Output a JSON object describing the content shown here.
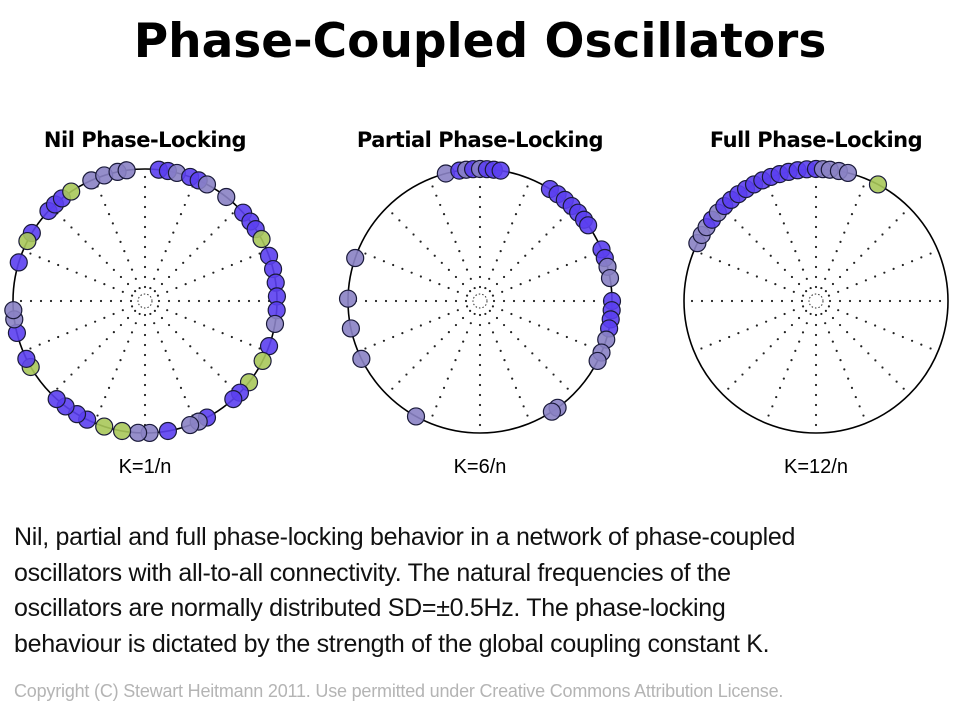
{
  "title": "Phase-Coupled Oscillators",
  "colors": {
    "blue": "#5b3ff0",
    "grey": "#8a82c4",
    "green": "#a9c85a",
    "outline": "#000000"
  },
  "panels": [
    {
      "title": "Nil Phase-Locking",
      "label": "K=1/n",
      "oscillators": [
        {
          "phase": 84,
          "c": "blue"
        },
        {
          "phase": 80,
          "c": "blue"
        },
        {
          "phase": 76,
          "c": "grey"
        },
        {
          "phase": 70,
          "c": "blue"
        },
        {
          "phase": 66,
          "c": "blue"
        },
        {
          "phase": 62,
          "c": "grey"
        },
        {
          "phase": 52,
          "c": "grey"
        },
        {
          "phase": 42,
          "c": "blue"
        },
        {
          "phase": 37,
          "c": "blue"
        },
        {
          "phase": 33,
          "c": "blue"
        },
        {
          "phase": 28,
          "c": "green"
        },
        {
          "phase": 20,
          "c": "blue"
        },
        {
          "phase": 14,
          "c": "blue"
        },
        {
          "phase": 8,
          "c": "blue"
        },
        {
          "phase": 2,
          "c": "blue"
        },
        {
          "phase": -4,
          "c": "blue"
        },
        {
          "phase": -10,
          "c": "grey"
        },
        {
          "phase": -20,
          "c": "blue"
        },
        {
          "phase": -27,
          "c": "green"
        },
        {
          "phase": -38,
          "c": "green"
        },
        {
          "phase": -44,
          "c": "blue"
        },
        {
          "phase": -48,
          "c": "blue"
        },
        {
          "phase": -62,
          "c": "blue"
        },
        {
          "phase": -66,
          "c": "grey"
        },
        {
          "phase": -70,
          "c": "grey"
        },
        {
          "phase": -80,
          "c": "blue"
        },
        {
          "phase": -88,
          "c": "grey"
        },
        {
          "phase": -93,
          "c": "grey"
        },
        {
          "phase": -100,
          "c": "green"
        },
        {
          "phase": -108,
          "c": "green"
        },
        {
          "phase": -116,
          "c": "blue"
        },
        {
          "phase": -121,
          "c": "blue"
        },
        {
          "phase": -127,
          "c": "blue"
        },
        {
          "phase": -132,
          "c": "blue"
        },
        {
          "phase": -150,
          "c": "green"
        },
        {
          "phase": -154,
          "c": "blue"
        },
        {
          "phase": -166,
          "c": "blue"
        },
        {
          "phase": -172,
          "c": "grey"
        },
        {
          "phase": -176,
          "c": "grey"
        },
        {
          "phase": 163,
          "c": "blue"
        },
        {
          "phase": 149,
          "c": "blue"
        },
        {
          "phase": 153,
          "c": "green"
        },
        {
          "phase": 137,
          "c": "blue"
        },
        {
          "phase": 133,
          "c": "blue"
        },
        {
          "phase": 129,
          "c": "blue"
        },
        {
          "phase": 124,
          "c": "green"
        },
        {
          "phase": 114,
          "c": "grey"
        },
        {
          "phase": 108,
          "c": "grey"
        },
        {
          "phase": 102,
          "c": "grey"
        },
        {
          "phase": 98,
          "c": "grey"
        }
      ]
    },
    {
      "title": "Partial Phase-Locking",
      "label": "K=6/n",
      "oscillators": [
        {
          "phase": 105,
          "c": "grey"
        },
        {
          "phase": 99,
          "c": "blue"
        },
        {
          "phase": 96,
          "c": "grey"
        },
        {
          "phase": 93,
          "c": "blue"
        },
        {
          "phase": 90,
          "c": "grey"
        },
        {
          "phase": 87,
          "c": "blue"
        },
        {
          "phase": 84,
          "c": "blue"
        },
        {
          "phase": 81,
          "c": "blue"
        },
        {
          "phase": 58,
          "c": "blue"
        },
        {
          "phase": 54,
          "c": "blue"
        },
        {
          "phase": 50,
          "c": "blue"
        },
        {
          "phase": 46,
          "c": "blue"
        },
        {
          "phase": 42,
          "c": "blue"
        },
        {
          "phase": 38,
          "c": "blue"
        },
        {
          "phase": 35,
          "c": "blue"
        },
        {
          "phase": 23,
          "c": "blue"
        },
        {
          "phase": 19,
          "c": "blue"
        },
        {
          "phase": 15,
          "c": "grey"
        },
        {
          "phase": 10,
          "c": "grey"
        },
        {
          "phase": 0,
          "c": "blue"
        },
        {
          "phase": -4,
          "c": "blue"
        },
        {
          "phase": -8,
          "c": "blue"
        },
        {
          "phase": -12,
          "c": "blue"
        },
        {
          "phase": -17,
          "c": "grey"
        },
        {
          "phase": -23,
          "c": "grey"
        },
        {
          "phase": -27,
          "c": "grey"
        },
        {
          "phase": -54,
          "c": "grey"
        },
        {
          "phase": -57,
          "c": "grey"
        },
        {
          "phase": 161,
          "c": "grey"
        },
        {
          "phase": 179,
          "c": "grey"
        },
        {
          "phase": -168,
          "c": "grey"
        },
        {
          "phase": -154,
          "c": "grey"
        },
        {
          "phase": -119,
          "c": "grey"
        }
      ]
    },
    {
      "title": "Full Phase-Locking",
      "label": "K=12/n",
      "oscillators": [
        {
          "phase": 154,
          "c": "grey"
        },
        {
          "phase": 150,
          "c": "grey"
        },
        {
          "phase": 146,
          "c": "grey"
        },
        {
          "phase": 142,
          "c": "blue"
        },
        {
          "phase": 138,
          "c": "grey"
        },
        {
          "phase": 134,
          "c": "blue"
        },
        {
          "phase": 130,
          "c": "blue"
        },
        {
          "phase": 126,
          "c": "blue"
        },
        {
          "phase": 122,
          "c": "blue"
        },
        {
          "phase": 118,
          "c": "blue"
        },
        {
          "phase": 114,
          "c": "blue"
        },
        {
          "phase": 110,
          "c": "blue"
        },
        {
          "phase": 106,
          "c": "blue"
        },
        {
          "phase": 102,
          "c": "blue"
        },
        {
          "phase": 98,
          "c": "blue"
        },
        {
          "phase": 94,
          "c": "blue"
        },
        {
          "phase": 90,
          "c": "blue"
        },
        {
          "phase": 87,
          "c": "grey"
        },
        {
          "phase": 84,
          "c": "grey"
        },
        {
          "phase": 80,
          "c": "grey"
        },
        {
          "phase": 76,
          "c": "grey"
        },
        {
          "phase": 62,
          "c": "green"
        }
      ]
    }
  ],
  "caption": [
    "Nil, partial and full phase-locking behavior in a network of phase-coupled",
    "oscillators with all-to-all connectivity. The natural frequencies of the",
    "oscillators are normally distributed SD=±0.5Hz.  The phase-locking",
    "behaviour is dictated by the strength of the global coupling constant K."
  ],
  "copyright": "Copyright (C) Stewart Heitmann 2011. Use permitted under Creative Commons Attribution License."
}
